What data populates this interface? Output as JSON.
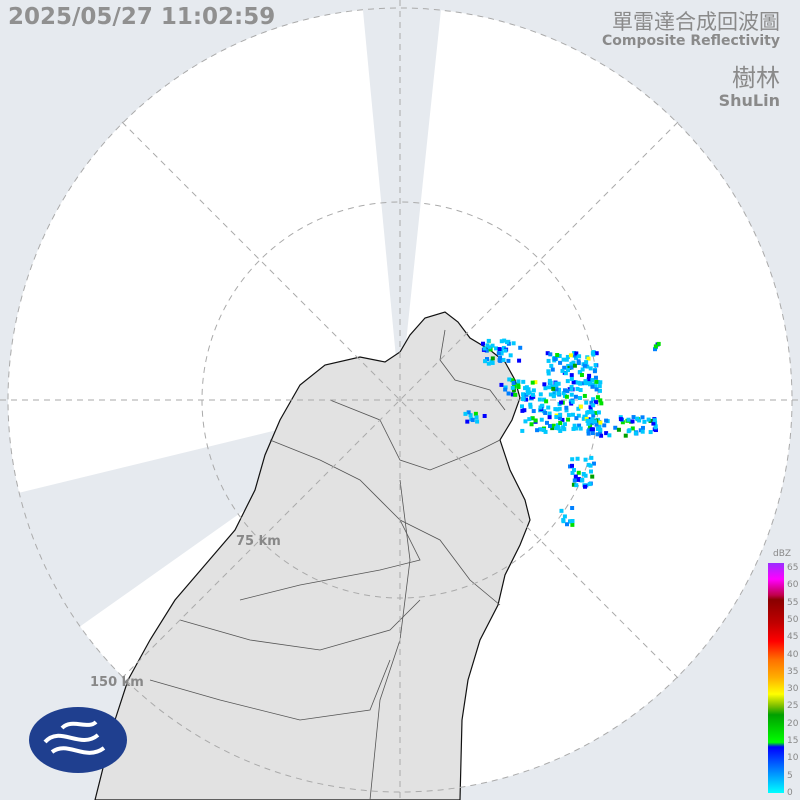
{
  "timestamp": "2025/05/27 11:02:59",
  "title_zh": "單雷達合成回波圖",
  "title_en": "Composite Reflectivity",
  "station_zh": "樹林",
  "station_en": "ShuLin",
  "range_labels": [
    "75 km",
    "150 km"
  ],
  "legend": {
    "unit": "dBZ",
    "ticks": [
      "65",
      "60",
      "55",
      "50",
      "45",
      "40",
      "35",
      "30",
      "25",
      "20",
      "15",
      "10",
      "5",
      "0"
    ]
  },
  "colors": {
    "background": "#e6eaef",
    "land": "#e2e2e2",
    "coverage": "#ffffff"
  },
  "logo": "cwa-logo"
}
